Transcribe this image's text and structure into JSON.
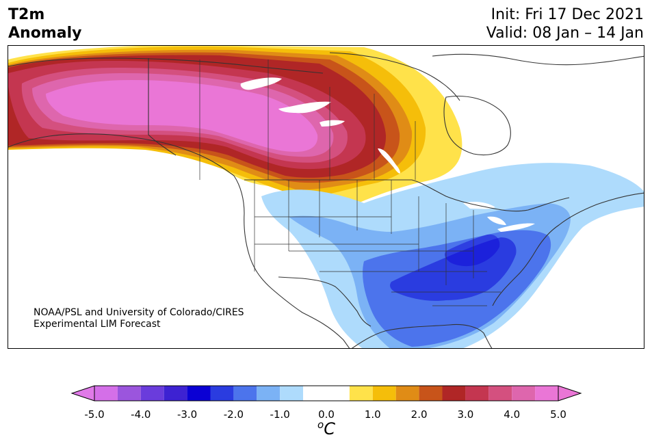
{
  "header": {
    "variable": "T2m",
    "field": "Anomaly",
    "init": "Init: Fri 17 Dec 2021",
    "valid": "Valid: 08 Jan – 14 Jan"
  },
  "credit": {
    "line1": "NOAA/PSL and University of Colorado/CIRES",
    "line2": "Experimental LIM Forecast"
  },
  "colorbar": {
    "unit_base": "C",
    "unit_sup": "o",
    "ticks": [
      "-5.0",
      "-4.0",
      "-3.0",
      "-2.0",
      "-1.0",
      "0.0",
      "1.0",
      "2.0",
      "3.0",
      "4.0",
      "5.0"
    ],
    "levels": [
      -5.0,
      -4.5,
      -4.0,
      -3.5,
      -3.0,
      -2.5,
      -2.0,
      -1.5,
      -1.0,
      -0.5,
      0.5,
      1.0,
      1.5,
      2.0,
      2.5,
      3.0,
      3.5,
      4.0,
      4.5,
      5.0
    ],
    "colors": [
      "#d46fe8",
      "#9b55dd",
      "#6a3cdc",
      "#3d22d2",
      "#0a00d4",
      "#2a3ce0",
      "#4c74ec",
      "#7bb2f5",
      "#aedbfc",
      "#ffffff",
      "#ffe24a",
      "#f5be0a",
      "#e08c16",
      "#c8541a",
      "#b02626",
      "#c43650",
      "#d4507f",
      "#de66ad",
      "#ea76d6"
    ],
    "under_color": "#e07ae8",
    "over_color": "#ea76d6"
  },
  "map": {
    "region": "North America",
    "warm_anomaly_region": "Alaska and western/central Canada",
    "cold_anomaly_region": "Southeastern and south-central United States"
  }
}
